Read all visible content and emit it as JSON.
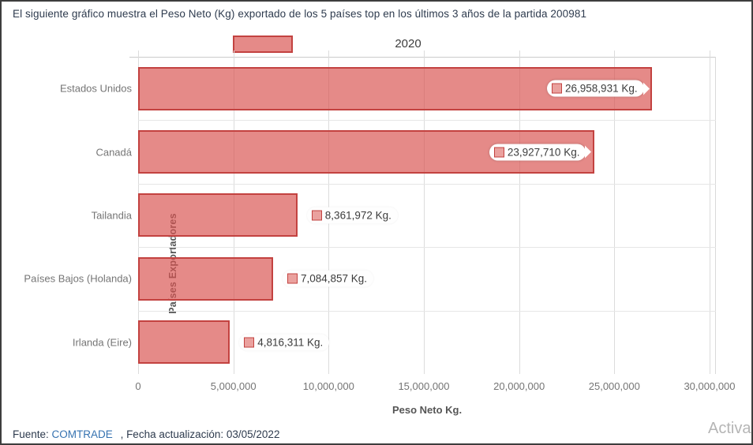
{
  "page": {
    "title": "El siguiente gráfico muestra el Peso Neto (Kg) exportado de los 5 países top en los últimos 3 años de la partida 200981",
    "footer": {
      "prefix": "Fuente:",
      "link": "COMTRADE",
      "suffix": ", Fecha actualización: 03/05/2022"
    },
    "watermark": "Activar"
  },
  "chart_data": {
    "type": "bar",
    "orientation": "horizontal",
    "title": "2020",
    "categories": [
      "Estados Unidos",
      "Canadá",
      "Tailandia",
      "Países Bajos (Holanda)",
      "Irlanda (Eire)"
    ],
    "values": [
      26958931,
      23927710,
      8361972,
      7084857,
      4816311
    ],
    "value_labels": [
      "26,958,931 Kg.",
      "23,927,710 Kg.",
      "8,361,972 Kg.",
      "7,084,857 Kg.",
      "4,816,311 Kg."
    ],
    "xlabel": "Peso Neto Kg.",
    "ylabel": "Países Exportadores",
    "xlim": [
      0,
      30000000
    ],
    "x_ticks": [
      {
        "value": 0,
        "label": "0"
      },
      {
        "value": 5000000,
        "label": "5,000,000"
      },
      {
        "value": 10000000,
        "label": "10,000,000"
      },
      {
        "value": 15000000,
        "label": "15,000,000"
      },
      {
        "value": 20000000,
        "label": "20,000,000"
      },
      {
        "value": 25000000,
        "label": "25,000,000"
      },
      {
        "value": 30000000,
        "label": "30,000,000"
      }
    ],
    "grid": true,
    "legend_position": "top-left",
    "colors": {
      "bar_fill": "rgba(217,83,79,0.68)",
      "bar_border": "#c34240",
      "label_text": "#3c3c3c",
      "axis_text": "#757575"
    }
  }
}
